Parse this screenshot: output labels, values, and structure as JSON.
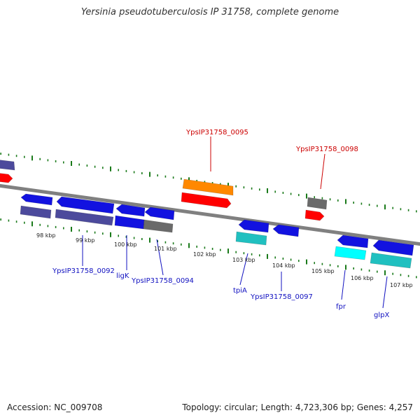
{
  "title": "Yersinia pseudotuberculosis IP 31758, complete genome",
  "footer": {
    "accession": "Accession: NC_009708",
    "summary": "Topology: circular; Length: 4,723,306 bp; Genes: 4,257"
  },
  "colors": {
    "backbone": "#808080",
    "tick": "#1a7a1a",
    "label_blue": "#1010c0",
    "label_red": "#cc0000",
    "gene_blue": "#1212e0",
    "gene_red": "#ff0000",
    "gene_orange": "#ff8800",
    "cds_purple": "#4c4a9c",
    "cds_gray": "#6a6a6a",
    "cds_teal": "#20c0c0",
    "cds_cyan": "#00ffff"
  },
  "kbp_ticks": [
    "98 kbp",
    "99 kbp",
    "100 kbp",
    "101 kbp",
    "102 kbp",
    "103 kbp",
    "104 kbp",
    "105 kbp",
    "106 kbp",
    "107 kbp"
  ],
  "gene_labels": [
    {
      "text": "YpsIP31758_0095",
      "color": "red"
    },
    {
      "text": "YpsIP31758_0098",
      "color": "red"
    },
    {
      "text": "YpsIP31758_0092",
      "color": "blue"
    },
    {
      "text": "ligK",
      "color": "blue"
    },
    {
      "text": "YpsIP31758_0094",
      "color": "blue"
    },
    {
      "text": "tpiA",
      "color": "blue"
    },
    {
      "text": "YpsIP31758_0097",
      "color": "blue"
    },
    {
      "text": "fpr",
      "color": "blue"
    },
    {
      "text": "glpX",
      "color": "blue"
    }
  ]
}
